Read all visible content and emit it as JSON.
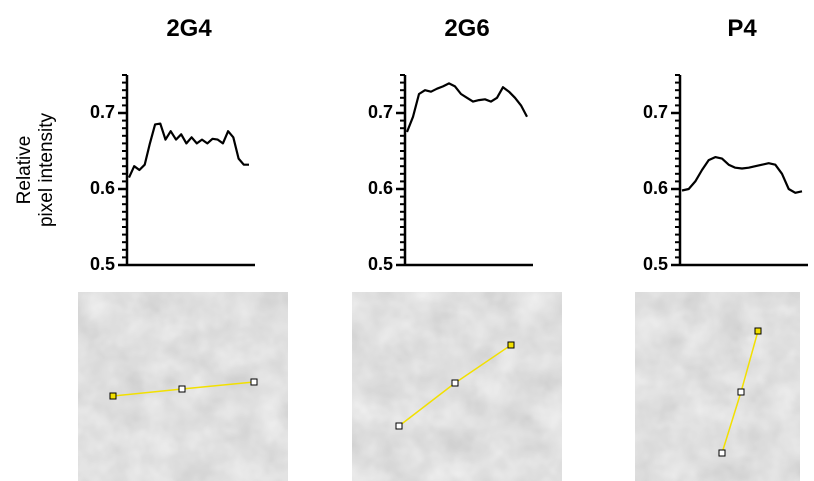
{
  "chart_data": [
    {
      "type": "line",
      "title": "2G4",
      "ylabel": [
        "Relative",
        "pixel intensity"
      ],
      "values": [
        0.615,
        0.63,
        0.625,
        0.632,
        0.66,
        0.685,
        0.686,
        0.665,
        0.676,
        0.665,
        0.672,
        0.66,
        0.668,
        0.66,
        0.665,
        0.66,
        0.666,
        0.665,
        0.66,
        0.676,
        0.668,
        0.64,
        0.632,
        0.632
      ],
      "color": "#000000",
      "ylim": [
        0.5,
        0.75
      ],
      "yticks": [
        0.5,
        0.6,
        0.7
      ],
      "minor_tick_step": 0.01
    },
    {
      "type": "line",
      "title": "2G6",
      "values": [
        0.675,
        0.695,
        0.725,
        0.73,
        0.728,
        0.732,
        0.735,
        0.739,
        0.735,
        0.725,
        0.72,
        0.715,
        0.717,
        0.718,
        0.715,
        0.72,
        0.734,
        0.728,
        0.72,
        0.71,
        0.695
      ],
      "color": "#000000",
      "ylim": [
        0.5,
        0.75
      ],
      "yticks": [
        0.5,
        0.6,
        0.7
      ],
      "minor_tick_step": 0.01
    },
    {
      "type": "line",
      "title": "P4",
      "values": [
        0.598,
        0.6,
        0.61,
        0.625,
        0.638,
        0.642,
        0.64,
        0.632,
        0.628,
        0.627,
        0.628,
        0.63,
        0.632,
        0.634,
        0.632,
        0.62,
        0.6,
        0.595,
        0.597
      ],
      "color": "#000000",
      "ylim": [
        0.5,
        0.75
      ],
      "yticks": [
        0.5,
        0.6,
        0.7
      ],
      "minor_tick_step": 0.01
    }
  ]
}
